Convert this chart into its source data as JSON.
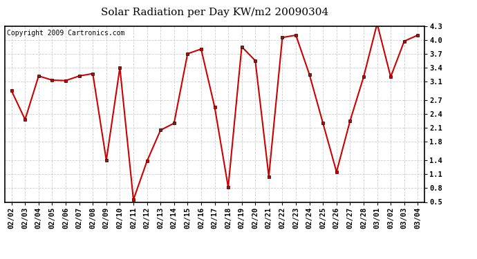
{
  "title": "Solar Radiation per Day KW/m2 20090304",
  "copyright": "Copyright 2009 Cartronics.com",
  "dates": [
    "02/02",
    "02/03",
    "02/04",
    "02/05",
    "02/06",
    "02/07",
    "02/08",
    "02/09",
    "02/10",
    "02/11",
    "02/12",
    "02/13",
    "02/14",
    "02/15",
    "02/16",
    "02/17",
    "02/18",
    "02/19",
    "02/20",
    "02/21",
    "02/22",
    "02/23",
    "02/24",
    "02/25",
    "02/26",
    "02/27",
    "02/28",
    "03/01",
    "03/02",
    "03/03",
    "03/04"
  ],
  "values": [
    2.9,
    2.28,
    3.22,
    3.13,
    3.12,
    3.22,
    3.27,
    1.4,
    3.4,
    0.55,
    1.38,
    2.05,
    2.2,
    3.7,
    3.8,
    2.55,
    0.82,
    3.85,
    3.55,
    1.05,
    4.05,
    4.1,
    3.25,
    2.2,
    1.15,
    2.25,
    3.2,
    4.35,
    3.2,
    3.97,
    4.1
  ],
  "line_color": "#cc0000",
  "marker_color": "#cc0000",
  "bg_color": "#ffffff",
  "grid_color": "#cccccc",
  "ylim": [
    0.5,
    4.3
  ],
  "yticks": [
    0.5,
    0.8,
    1.1,
    1.4,
    1.8,
    2.1,
    2.4,
    2.7,
    3.1,
    3.4,
    3.7,
    4.0,
    4.3
  ],
  "title_fontsize": 11,
  "copyright_fontsize": 7,
  "tick_fontsize": 7.5
}
